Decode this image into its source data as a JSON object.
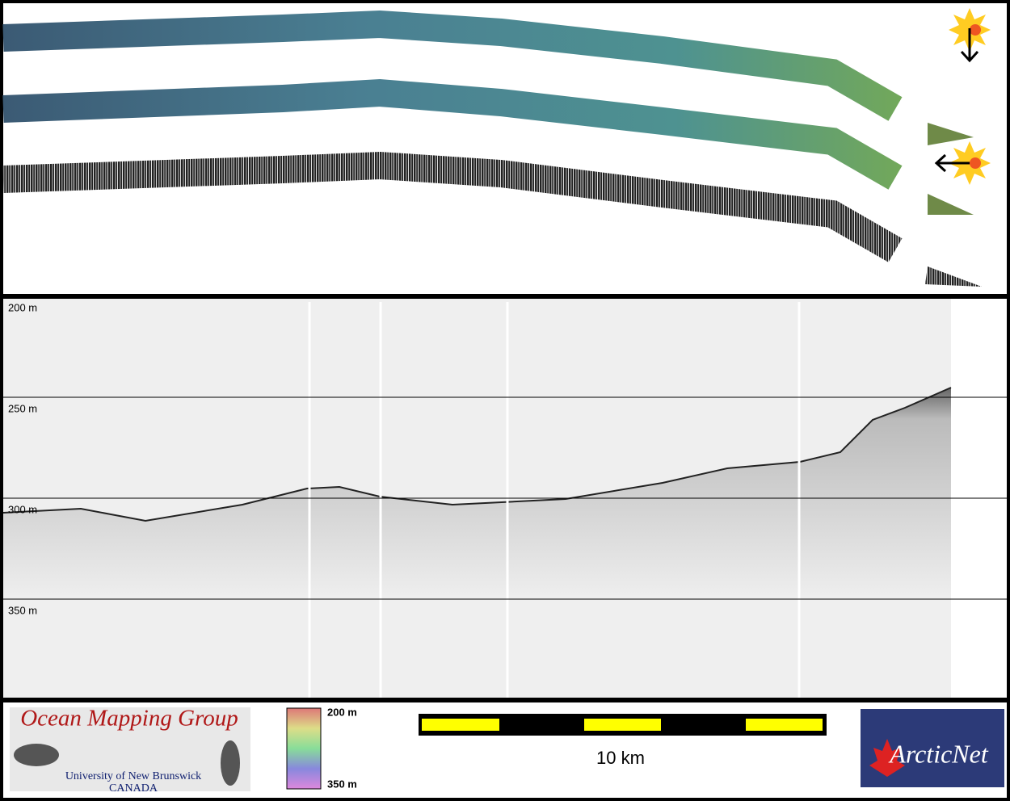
{
  "profile": {
    "depth_labels": [
      "200 m",
      "250 m",
      "300 m",
      "350 m"
    ]
  },
  "footer": {
    "logo_title": "Ocean Mapping Group",
    "logo_university": "University of New Brunswick",
    "logo_country": "CANADA",
    "colorbar_top": "200 m",
    "colorbar_bottom": "350 m",
    "scale_label": "10 km",
    "partner": "ArcticNet"
  }
}
